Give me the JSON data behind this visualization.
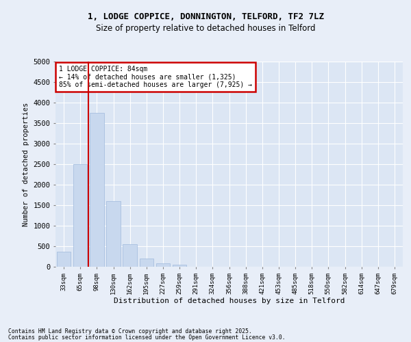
{
  "title1": "1, LODGE COPPICE, DONNINGTON, TELFORD, TF2 7LZ",
  "title2": "Size of property relative to detached houses in Telford",
  "xlabel": "Distribution of detached houses by size in Telford",
  "ylabel": "Number of detached properties",
  "categories": [
    "33sqm",
    "65sqm",
    "98sqm",
    "130sqm",
    "162sqm",
    "195sqm",
    "227sqm",
    "259sqm",
    "291sqm",
    "324sqm",
    "356sqm",
    "388sqm",
    "421sqm",
    "453sqm",
    "485sqm",
    "518sqm",
    "550sqm",
    "582sqm",
    "614sqm",
    "647sqm",
    "679sqm"
  ],
  "values": [
    375,
    2500,
    3750,
    1600,
    550,
    200,
    90,
    50,
    0,
    0,
    0,
    0,
    0,
    0,
    0,
    0,
    0,
    0,
    0,
    0,
    0
  ],
  "bar_color": "#c8d8ee",
  "bar_edge_color": "#a8c0e0",
  "vline_color": "#cc0000",
  "vline_pos": 1.5,
  "annotation_title": "1 LODGE COPPICE: 84sqm",
  "annotation_line1": "← 14% of detached houses are smaller (1,325)",
  "annotation_line2": "85% of semi-detached houses are larger (7,925) →",
  "annotation_box_color": "#cc0000",
  "ylim": [
    0,
    5000
  ],
  "yticks": [
    0,
    500,
    1000,
    1500,
    2000,
    2500,
    3000,
    3500,
    4000,
    4500,
    5000
  ],
  "bg_color": "#e8eef8",
  "plot_bg_color": "#dce6f4",
  "footer1": "Contains HM Land Registry data © Crown copyright and database right 2025.",
  "footer2": "Contains public sector information licensed under the Open Government Licence v3.0."
}
